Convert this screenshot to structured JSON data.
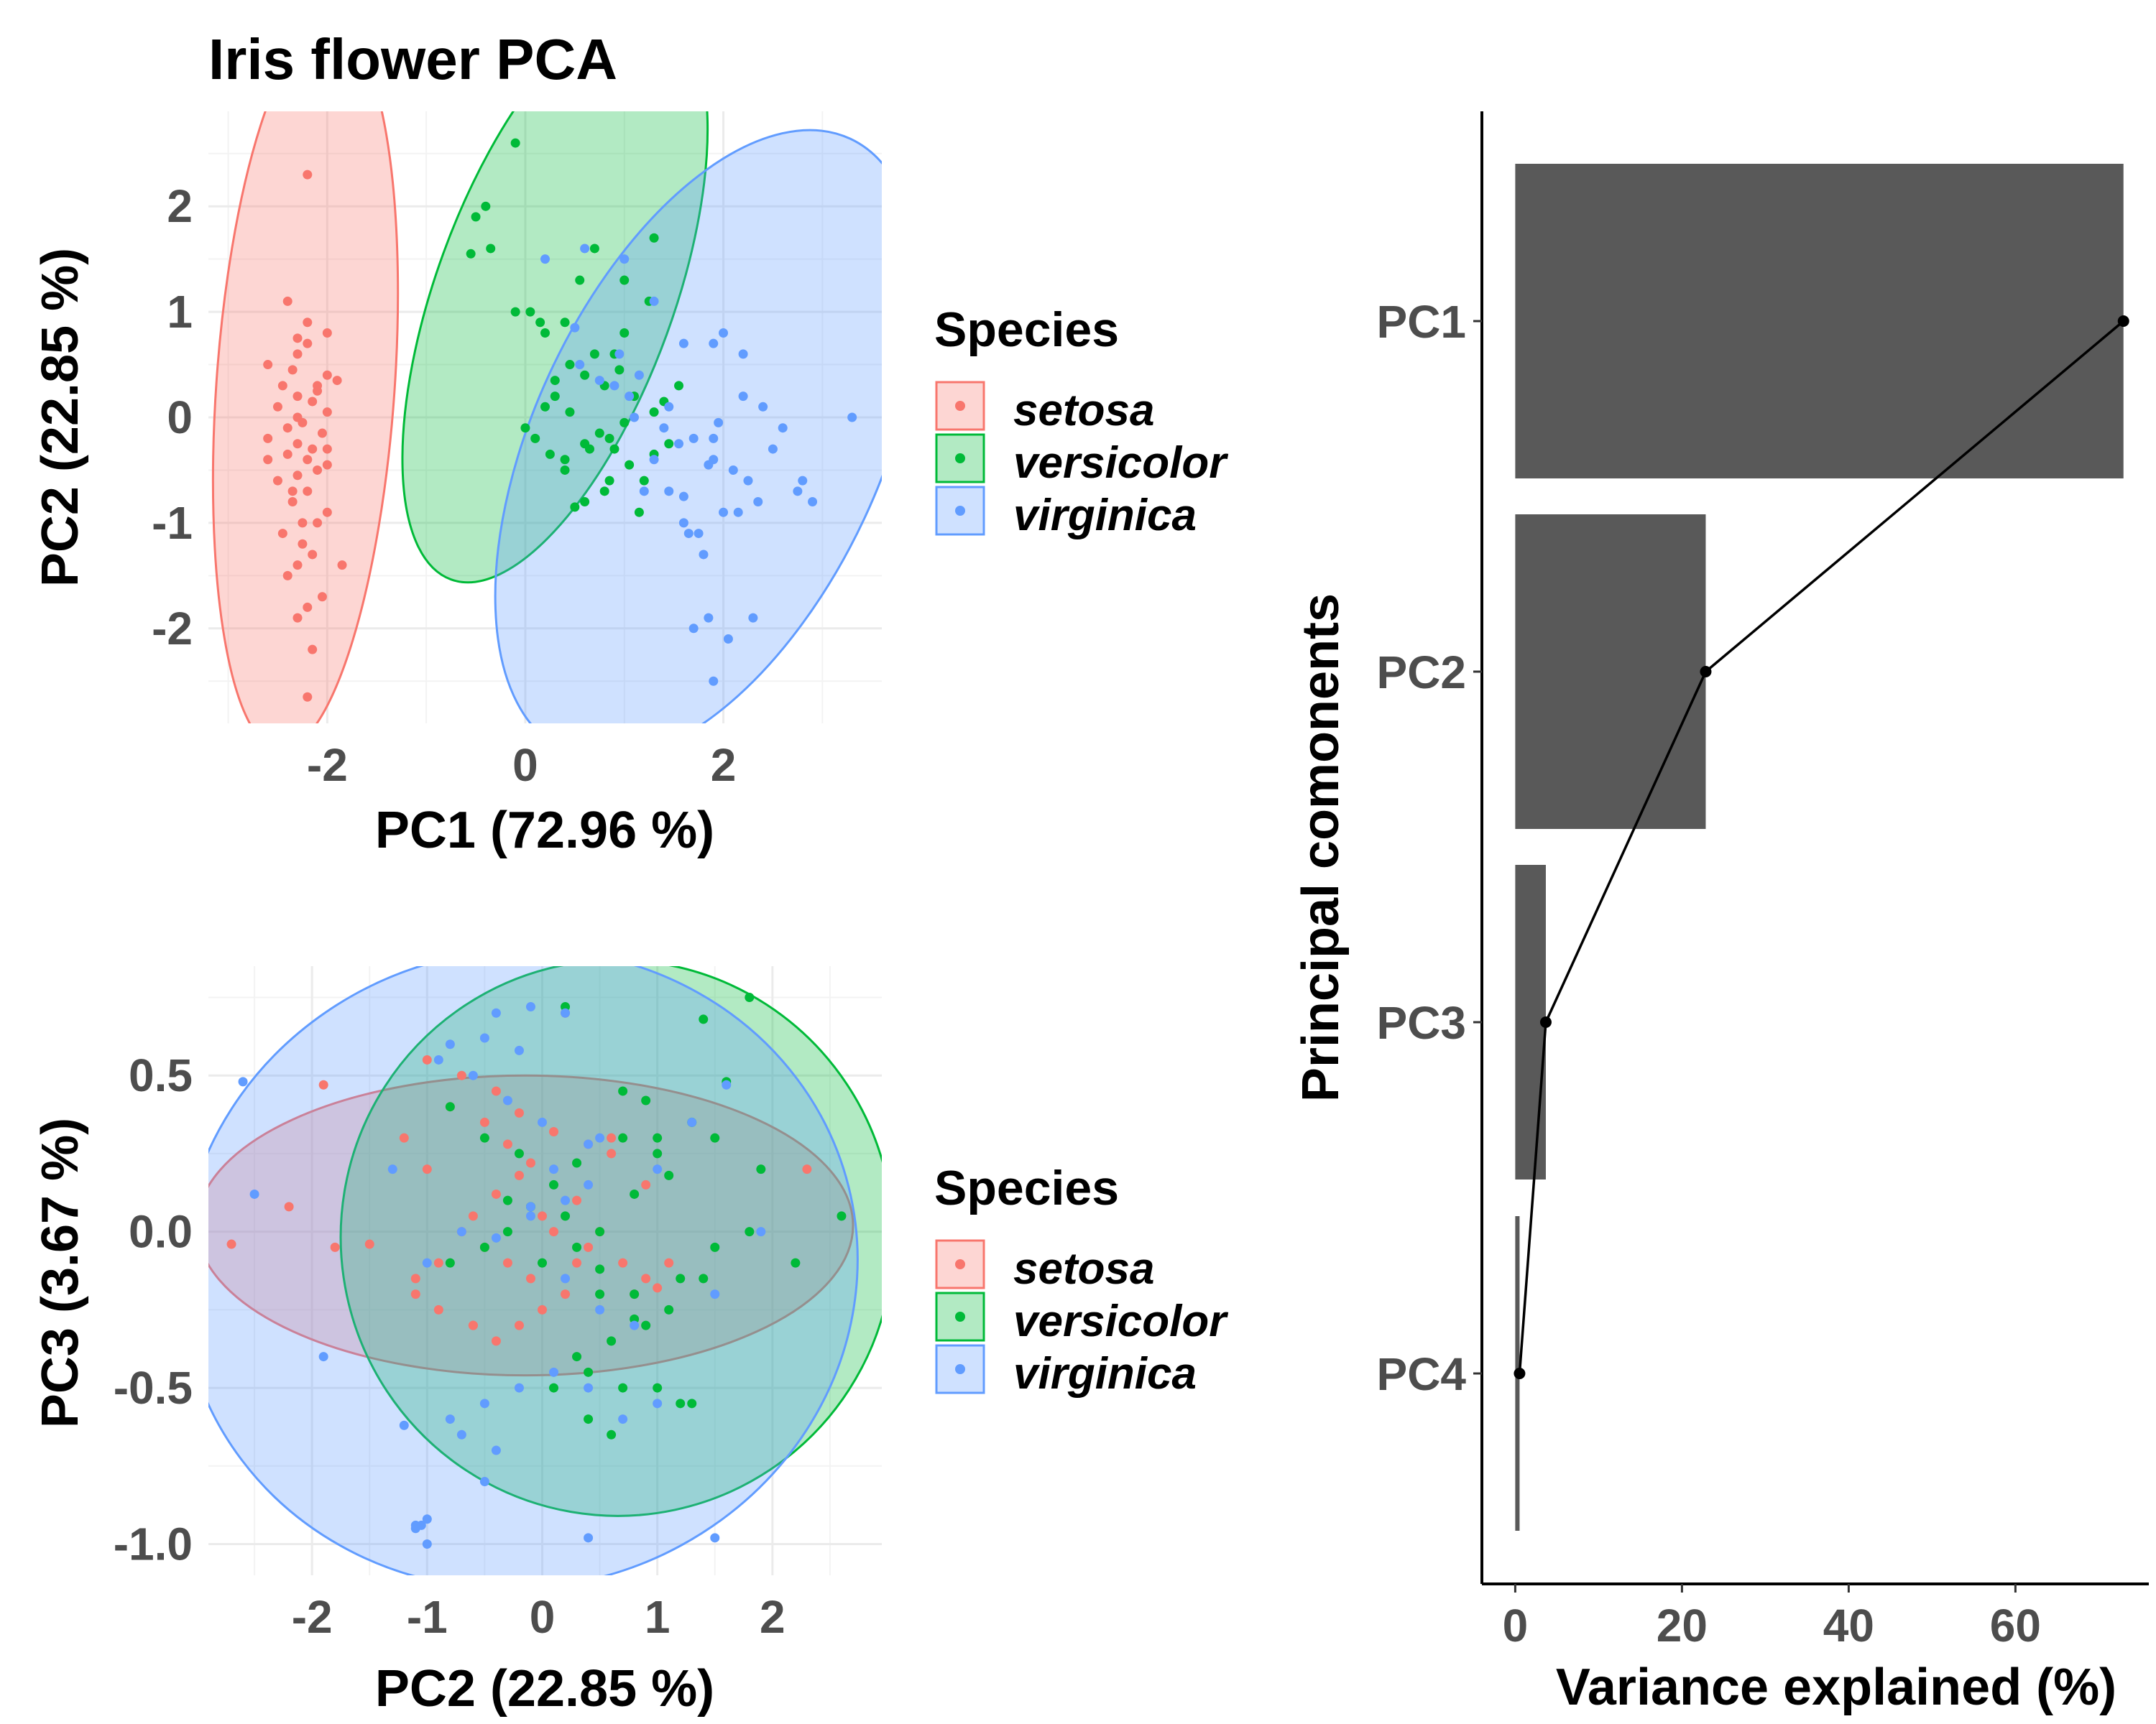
{
  "chart_data": [
    {
      "type": "scatter",
      "title": "Iris flower PCA",
      "xlabel": "PC1 (72.96 %)",
      "ylabel": "PC2 (22.85 %)",
      "xlim": [
        -3.2,
        3.6
      ],
      "ylim": [
        -2.9,
        2.9
      ],
      "xticks": [
        -2,
        0,
        2
      ],
      "yticks": [
        2,
        1,
        0,
        -1,
        -2
      ],
      "xticklabels": [
        "-2",
        "0",
        "2"
      ],
      "yticklabels": [
        "2",
        "1",
        "0",
        "-1",
        "-2"
      ],
      "grid": true,
      "legend": {
        "title": "Species",
        "position": "right",
        "entries": [
          "setosa",
          "versicolor",
          "virginica"
        ]
      },
      "ellipses": [
        {
          "name": "setosa",
          "cx": -2.22,
          "cy": 0.29,
          "rx": 0.9,
          "ry": 3.45,
          "angle": 4
        },
        {
          "name": "versicolor",
          "cx": 0.3,
          "cy": 1.17,
          "rx": 1.2,
          "ry": 2.88,
          "angle": 20
        },
        {
          "name": "virginica",
          "cx": 1.84,
          "cy": -0.26,
          "rx": 1.75,
          "ry": 3.2,
          "angle": 25
        }
      ],
      "series": [
        {
          "name": "setosa",
          "x": [
            -2.2,
            -2.4,
            -2.0,
            -2.3,
            -2.2,
            -2.6,
            -2.35,
            -2.0,
            -1.9,
            -2.45,
            -2.1,
            -2.3,
            -2.15,
            -2.5,
            -2.0,
            -2.3,
            -2.25,
            -2.4,
            -2.05,
            -2.6,
            -2.3,
            -2.15,
            -2.4,
            -2.2,
            -2.0,
            -2.1,
            -2.3,
            -2.5,
            -2.2,
            -2.35,
            -2.0,
            -2.1,
            -2.45,
            -2.25,
            -2.15,
            -2.3,
            -2.4,
            -2.05,
            -2.2,
            -2.3,
            -1.85,
            -2.25,
            -2.6,
            -2.2,
            -2.3,
            -2.1,
            -2.0,
            -2.35,
            -2.2,
            -2.15
          ],
          "y": [
            2.3,
            1.1,
            0.8,
            0.75,
            0.7,
            0.5,
            0.45,
            0.4,
            0.35,
            0.3,
            0.25,
            0.2,
            0.15,
            0.1,
            0.05,
            0.0,
            -0.05,
            -0.1,
            -0.15,
            -0.2,
            -0.25,
            -0.3,
            -0.35,
            -0.4,
            -0.45,
            -0.5,
            -0.55,
            -0.6,
            -0.7,
            -0.8,
            -0.9,
            -1.0,
            -1.1,
            -1.2,
            -1.3,
            -1.4,
            -1.5,
            -1.7,
            -1.8,
            -1.9,
            -1.4,
            -1.0,
            -0.4,
            0.9,
            0.6,
            0.3,
            -0.3,
            -0.7,
            -2.65,
            -2.2
          ]
        },
        {
          "name": "versicolor",
          "x": [
            -0.1,
            -0.4,
            -0.5,
            -0.55,
            -0.35,
            -0.1,
            0.05,
            0.15,
            0.2,
            0.4,
            0.55,
            0.7,
            1.0,
            1.25,
            1.3,
            0.9,
            0.45,
            0.6,
            0.8,
            1.1,
            1.3,
            1.4,
            1.55,
            1.0,
            0.85,
            0.65,
            0.4,
            0.25,
            0.1,
            0.0,
            0.3,
            0.45,
            0.75,
            0.9,
            1.05,
            1.2,
            0.8,
            0.6,
            0.5,
            0.4,
            0.7,
            1.0,
            0.95,
            1.15,
            1.45,
            0.6,
            0.3,
            0.2,
            0.85,
            1.3
          ],
          "y": [
            2.6,
            2.0,
            1.9,
            1.55,
            1.6,
            1.0,
            1.0,
            0.9,
            0.8,
            0.9,
            1.3,
            1.6,
            1.3,
            1.1,
            1.7,
            0.6,
            0.5,
            0.4,
            0.3,
            0.2,
            0.05,
            0.15,
            0.3,
            -0.05,
            -0.2,
            -0.3,
            -0.4,
            -0.35,
            -0.2,
            -0.1,
            0.2,
            0.05,
            -0.15,
            -0.3,
            -0.45,
            -0.6,
            -0.7,
            -0.8,
            -0.85,
            -0.5,
            0.6,
            0.8,
            0.45,
            -0.9,
            -0.25,
            -0.25,
            0.35,
            0.1,
            -0.6,
            -0.35
          ]
        },
        {
          "name": "virginica",
          "x": [
            0.2,
            0.6,
            1.0,
            1.3,
            1.6,
            1.9,
            2.2,
            2.4,
            2.6,
            2.8,
            3.3,
            2.9,
            2.75,
            2.3,
            2.05,
            1.85,
            1.65,
            1.45,
            1.2,
            1.05,
            0.95,
            1.15,
            1.45,
            1.7,
            1.9,
            2.1,
            2.25,
            2.35,
            2.5,
            1.6,
            1.75,
            2.0,
            2.15,
            1.8,
            1.3,
            1.1,
            0.75,
            0.55,
            0.5,
            0.9,
            1.4,
            1.55,
            1.85,
            2.0,
            2.2,
            1.95,
            1.9,
            1.6,
            1.7,
            1.9
          ],
          "y": [
            1.5,
            1.6,
            1.5,
            1.1,
            0.7,
            0.7,
            0.6,
            0.1,
            -0.1,
            -0.6,
            0.0,
            -0.8,
            -0.7,
            -1.9,
            -2.1,
            -1.9,
            -1.1,
            -0.7,
            -0.7,
            0.2,
            0.6,
            0.4,
            0.1,
            -0.2,
            -0.4,
            -0.5,
            -0.6,
            -0.8,
            -0.3,
            -1.0,
            -1.1,
            -0.9,
            -0.9,
            -1.3,
            -0.4,
            0.0,
            0.35,
            0.5,
            0.85,
            0.3,
            -0.1,
            -0.25,
            -0.45,
            0.8,
            0.2,
            -0.05,
            -0.2,
            -0.75,
            -2.0,
            -2.5
          ]
        }
      ]
    },
    {
      "type": "scatter",
      "xlabel": "PC2 (22.85 %)",
      "ylabel": "PC3 (3.67 %)",
      "xlim": [
        -2.9,
        2.95
      ],
      "ylim": [
        -1.1,
        0.85
      ],
      "xticks": [
        -2,
        -1,
        0,
        1,
        2
      ],
      "yticks": [
        0.5,
        0.0,
        -0.5,
        -1.0
      ],
      "xticklabels": [
        "-2",
        "-1",
        "0",
        "1",
        "2"
      ],
      "yticklabels": [
        "0.5",
        "0.0",
        "-0.5",
        "-1.0"
      ],
      "grid": true,
      "legend": {
        "title": "Species",
        "position": "right",
        "entries": [
          "setosa",
          "versicolor",
          "virginica"
        ]
      },
      "ellipses": [
        {
          "name": "setosa",
          "cx": -0.15,
          "cy": 0.02,
          "rx": 2.85,
          "ry": 0.48,
          "angle": 0
        },
        {
          "name": "versicolor",
          "cx": 0.65,
          "cy": -0.02,
          "rx": 2.4,
          "ry": 0.89,
          "angle": -12
        },
        {
          "name": "virginica",
          "cx": -0.2,
          "cy": -0.12,
          "rx": 2.95,
          "ry": 1.02,
          "angle": -14
        }
      ],
      "series": [
        {
          "name": "setosa",
          "x": [
            -1.9,
            -2.2,
            -2.7,
            -1.8,
            -1.5,
            -1.2,
            -1.0,
            -0.7,
            -0.5,
            -0.3,
            -0.1,
            0.1,
            0.3,
            0.5,
            0.7,
            0.9,
            1.1,
            -1.1,
            -0.9,
            -0.6,
            -0.4,
            -0.2,
            0.0,
            0.2,
            0.4,
            -0.8,
            -0.5,
            -0.3,
            -0.1,
            0.6,
            0.9,
            2.3,
            -1.0,
            -0.7,
            -0.4,
            -0.2,
            0.1,
            0.4,
            0.6,
            -1.1,
            -0.9,
            -0.6,
            -0.4,
            -0.2,
            0.0,
            0.3,
            1.0,
            0.8,
            -0.6,
            0.2
          ],
          "y": [
            0.47,
            0.08,
            -0.04,
            -0.05,
            -0.04,
            0.3,
            0.2,
            0.0,
            -0.05,
            -0.1,
            -0.15,
            0.0,
            0.1,
            0.0,
            -0.1,
            -0.15,
            -0.1,
            -0.2,
            -0.25,
            -0.3,
            -0.35,
            -0.3,
            -0.25,
            -0.2,
            -0.05,
            0.4,
            0.35,
            0.28,
            0.22,
            0.25,
            0.15,
            0.2,
            0.55,
            0.5,
            0.45,
            0.38,
            0.32,
            0.28,
            0.3,
            -0.15,
            -0.1,
            0.05,
            0.12,
            0.18,
            0.05,
            -0.1,
            -0.18,
            -0.2,
            -0.3,
            0.7
          ]
        },
        {
          "name": "versicolor",
          "x": [
            0.2,
            1.4,
            1.8,
            1.6,
            1.3,
            1.0,
            0.7,
            0.3,
            0.1,
            -0.1,
            -0.3,
            -0.5,
            -0.8,
            0.5,
            0.8,
            1.2,
            1.5,
            1.8,
            2.6,
            2.2,
            1.9,
            1.5,
            1.1,
            0.8,
            0.5,
            0.3,
            0.0,
            -0.2,
            -0.5,
            -0.8,
            0.4,
            0.7,
            1.0,
            1.3,
            0.9,
            0.6,
            0.3,
            0.1,
            0.5,
            0.8,
            1.1,
            1.4,
            0.2,
            0.7,
            0.9,
            -0.3,
            0.4,
            1.2,
            0.6,
            1.0
          ],
          "y": [
            0.72,
            0.68,
            0.75,
            0.48,
            0.35,
            0.25,
            0.3,
            0.22,
            0.15,
            0.08,
            0.0,
            -0.05,
            -0.1,
            -0.12,
            -0.2,
            -0.15,
            -0.05,
            0.0,
            0.05,
            -0.1,
            0.2,
            0.3,
            0.18,
            0.12,
            0.0,
            -0.05,
            -0.1,
            0.25,
            0.3,
            0.4,
            -0.45,
            -0.5,
            -0.5,
            -0.55,
            -0.3,
            -0.35,
            -0.4,
            -0.5,
            -0.2,
            -0.28,
            -0.25,
            -0.15,
            0.05,
            0.45,
            0.42,
            0.1,
            -0.6,
            -0.55,
            -0.65,
            0.3
          ]
        },
        {
          "name": "virginica",
          "x": [
            -2.6,
            -2.5,
            -1.9,
            -1.2,
            -1.0,
            -0.5,
            -0.4,
            -0.1,
            0.2,
            0.5,
            1.0,
            1.3,
            1.6,
            1.9,
            1.5,
            1.0,
            0.7,
            0.4,
            0.1,
            -0.2,
            -0.5,
            -0.8,
            -1.1,
            -1.0,
            -0.7,
            -0.4,
            -0.1,
            0.2,
            0.5,
            0.8,
            -1.1,
            -1.05,
            -0.9,
            -0.6,
            -0.3,
            0.0,
            0.4,
            1.5,
            0.4,
            -0.8,
            -0.5,
            -0.2,
            0.1,
            0.4,
            0.2,
            -0.1,
            -0.4,
            -0.7,
            -1.0,
            -1.3
          ],
          "y": [
            0.48,
            0.12,
            -0.4,
            -0.62,
            -0.92,
            -0.8,
            0.7,
            0.72,
            0.7,
            0.3,
            0.2,
            0.35,
            0.47,
            0.0,
            -0.2,
            -0.55,
            -0.6,
            -0.5,
            -0.45,
            -0.5,
            -0.55,
            -0.6,
            -0.95,
            -1.0,
            -0.65,
            -0.7,
            0.05,
            -0.15,
            -0.25,
            -0.3,
            -0.94,
            -0.94,
            0.55,
            0.5,
            0.42,
            0.35,
            0.28,
            -0.98,
            -0.98,
            0.6,
            0.62,
            0.58,
            0.2,
            0.15,
            0.1,
            0.08,
            -0.02,
            0.0,
            -0.1,
            0.2
          ]
        }
      ]
    },
    {
      "type": "bar",
      "orientation": "horizontal",
      "xlabel": "Variance explained (%)",
      "ylabel": "Principal comonents",
      "categories": [
        "PC1",
        "PC2",
        "PC3",
        "PC4"
      ],
      "values": [
        72.96,
        22.85,
        3.67,
        0.52
      ],
      "line_overlay": true,
      "xlim": [
        -4,
        76
      ],
      "xticks": [
        0,
        20,
        40,
        60
      ],
      "xticklabels": [
        "0",
        "20",
        "40",
        "60"
      ],
      "grid": false
    }
  ],
  "colors": {
    "setosa": "#F8766D",
    "versicolor": "#00BA38",
    "virginica": "#619CFF",
    "bar": "#595959"
  }
}
